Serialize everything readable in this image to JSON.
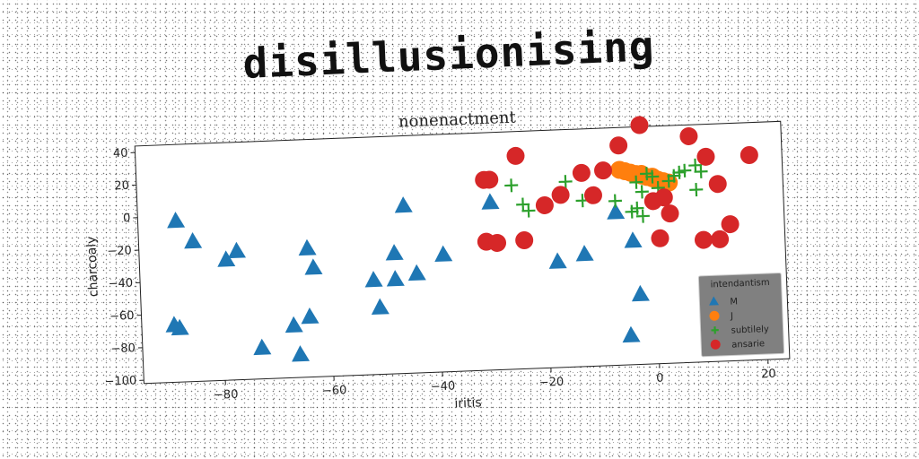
{
  "page": {
    "title": "disillusionising"
  },
  "chart_data": {
    "type": "scatter",
    "title": "nonenactment",
    "xlabel": "iritis",
    "ylabel": "charcoaly",
    "xlim": [
      -95,
      24
    ],
    "ylim": [
      -102,
      44
    ],
    "xticks": [
      -80,
      -60,
      -40,
      -20,
      0,
      20
    ],
    "yticks": [
      40,
      20,
      0,
      -20,
      -40,
      -60,
      -80,
      -100
    ],
    "grid": false,
    "legend": {
      "title": "intendantism",
      "placement": "lower-right"
    },
    "series": [
      {
        "name": "M",
        "marker": "triangle",
        "color": "#1f77b4",
        "points": [
          [
            -88,
            -3
          ],
          [
            -85,
            -16
          ],
          [
            -79,
            -28
          ],
          [
            -77,
            -23
          ],
          [
            -89,
            -67
          ],
          [
            -88,
            -69
          ],
          [
            -73,
            -83
          ],
          [
            -67,
            -70
          ],
          [
            -66,
            -88
          ],
          [
            -64,
            -23
          ],
          [
            -63,
            -35
          ],
          [
            -64,
            -65
          ],
          [
            -52,
            -44
          ],
          [
            -51,
            -61
          ],
          [
            -48,
            -28
          ],
          [
            -48,
            -44
          ],
          [
            -46,
            1
          ],
          [
            -44,
            -41
          ],
          [
            -39,
            -30
          ],
          [
            -30,
            1
          ],
          [
            -18,
            -37
          ],
          [
            -13,
            -33
          ],
          [
            -7,
            -8
          ],
          [
            -4,
            -26
          ],
          [
            -3,
            -59
          ],
          [
            -5,
            -84
          ]
        ]
      },
      {
        "name": "J",
        "marker": "circle",
        "color": "#ff7f0e",
        "points": [
          [
            -6,
            18
          ],
          [
            -5,
            17
          ],
          [
            -4,
            16
          ],
          [
            -3,
            15
          ],
          [
            -2,
            14
          ],
          [
            -1,
            13
          ],
          [
            0,
            12
          ],
          [
            1,
            11
          ],
          [
            2,
            10
          ],
          [
            3,
            9
          ],
          [
            -2,
            15
          ],
          [
            0,
            13
          ]
        ]
      },
      {
        "name": "subtilely",
        "marker": "plus",
        "color": "#2ca02c",
        "points": [
          [
            -26,
            11
          ],
          [
            -24,
            -1
          ],
          [
            -23,
            -5
          ],
          [
            -16,
            12
          ],
          [
            -13,
            0
          ],
          [
            -7,
            -1
          ],
          [
            -4,
            -8
          ],
          [
            -3,
            -6
          ],
          [
            -2,
            -11
          ],
          [
            -3,
            10
          ],
          [
            -2,
            4
          ],
          [
            -1,
            15
          ],
          [
            0,
            13
          ],
          [
            1,
            6
          ],
          [
            2,
            -1
          ],
          [
            3,
            10
          ],
          [
            4,
            13
          ],
          [
            5,
            15
          ],
          [
            6,
            16
          ],
          [
            8,
            19
          ],
          [
            9,
            15
          ],
          [
            8,
            4
          ]
        ]
      },
      {
        "name": "ansarie",
        "marker": "circle",
        "color": "#d62728",
        "points": [
          [
            -31,
            15
          ],
          [
            -30,
            15
          ],
          [
            -25,
            29
          ],
          [
            -31,
            -23
          ],
          [
            -29,
            -24
          ],
          [
            -24,
            -23
          ],
          [
            -20,
            -2
          ],
          [
            -17,
            4
          ],
          [
            -13,
            17
          ],
          [
            -11,
            3
          ],
          [
            -9,
            18
          ],
          [
            -6,
            33
          ],
          [
            -2,
            45
          ],
          [
            0,
            -2
          ],
          [
            2,
            0
          ],
          [
            1,
            -25
          ],
          [
            3,
            -10
          ],
          [
            7,
            37
          ],
          [
            10,
            24
          ],
          [
            9,
            -27
          ],
          [
            12,
            -27
          ],
          [
            14,
            -18
          ],
          [
            12,
            7
          ],
          [
            18,
            24
          ]
        ]
      }
    ]
  }
}
